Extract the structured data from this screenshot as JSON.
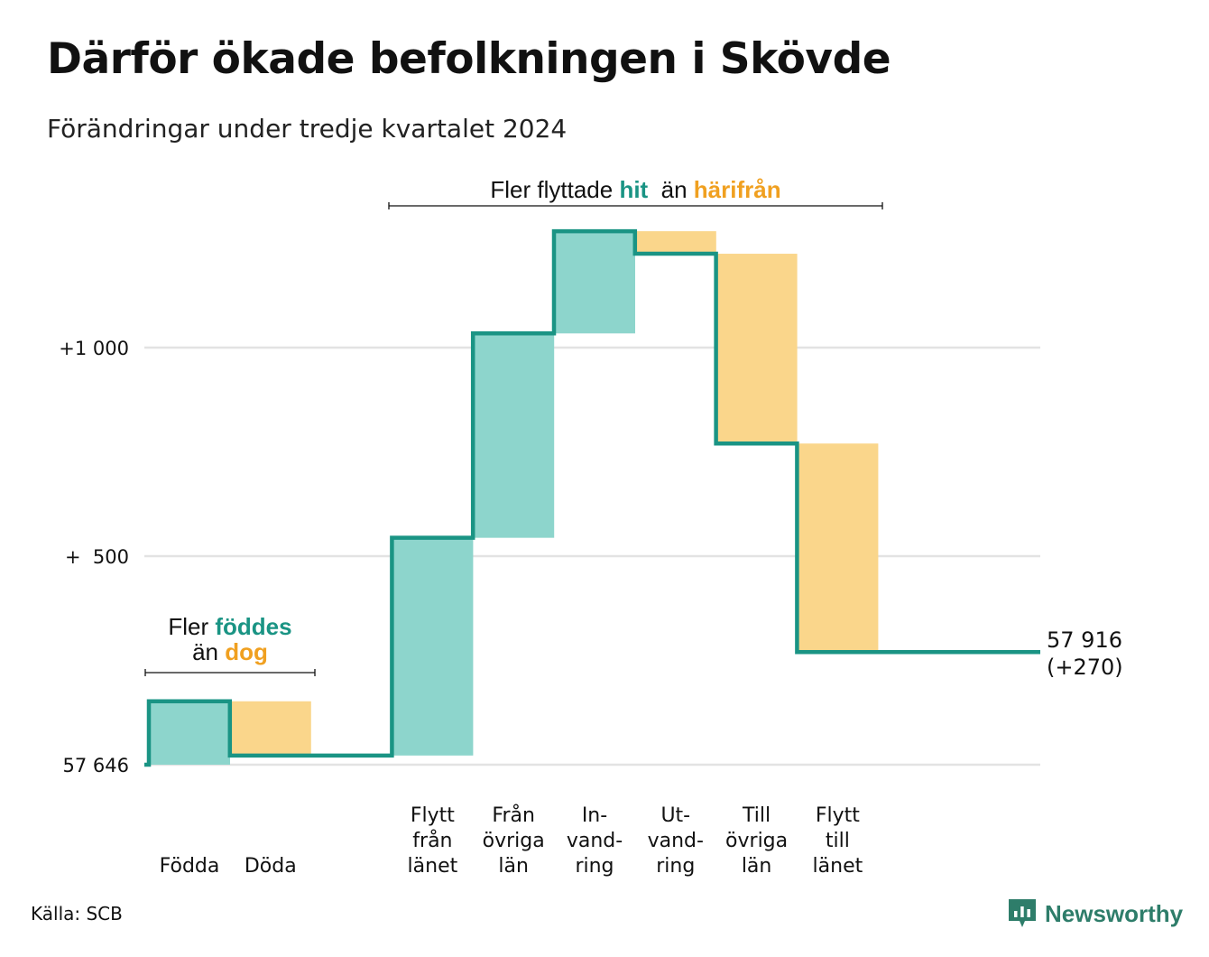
{
  "title": "Därför ökade befolkningen i Skövde",
  "subtitle": "Förändringar under tredje kvartalet 2024",
  "source": "Källa: SCB",
  "brand": {
    "name": "Newsworthy",
    "icon": "newsworthy-logo-icon"
  },
  "colors": {
    "increase": "#8dd5cc",
    "decrease": "#fad68b",
    "line": "#1a9484",
    "hit_text": "#1a9484",
    "away_text": "#f0a020",
    "grid": "#e3e3e3"
  },
  "chart_data": {
    "type": "waterfall",
    "start_value": 57646,
    "end_value": 57916,
    "end_label": [
      "57 916",
      "(+270)"
    ],
    "yticks": [
      {
        "label": "57 646",
        "offset": 0
      },
      {
        "label": "+  500",
        "offset": 500
      },
      {
        "label": "+1 000",
        "offset": 1000
      }
    ],
    "ylim_offset": [
      0,
      1280
    ],
    "steps": [
      {
        "label": [
          "Födda"
        ],
        "change": 152,
        "kind": "increase"
      },
      {
        "label": [
          "Döda"
        ],
        "change": -130,
        "kind": "decrease"
      },
      {
        "label": [],
        "change": 0,
        "kind": "none"
      },
      {
        "label": [
          "Flytt",
          "från",
          "länet"
        ],
        "change": 522,
        "kind": "increase"
      },
      {
        "label": [
          "Från",
          "övriga",
          "län"
        ],
        "change": 490,
        "kind": "increase"
      },
      {
        "label": [
          "In-",
          "vand-",
          "ring"
        ],
        "change": 245,
        "kind": "increase"
      },
      {
        "label": [
          "Ut-",
          "vand-",
          "ring"
        ],
        "change": -54,
        "kind": "decrease"
      },
      {
        "label": [
          "Till",
          "övriga",
          "län"
        ],
        "change": -455,
        "kind": "decrease"
      },
      {
        "label": [
          "Flytt",
          "till",
          "länet"
        ],
        "change": -500,
        "kind": "decrease"
      }
    ],
    "annotations": [
      {
        "id": "birth",
        "lines": [
          [
            {
              "text": "Fler ",
              "role": "plain"
            },
            {
              "text": "föddes",
              "role": "hit"
            }
          ],
          [
            {
              "text": "än ",
              "role": "plain"
            },
            {
              "text": "dog",
              "role": "away"
            }
          ]
        ],
        "span": [
          0,
          1
        ]
      },
      {
        "id": "move",
        "lines": [
          [
            {
              "text": "Fler flyttade ",
              "role": "plain"
            },
            {
              "text": "hit",
              "role": "hit"
            },
            {
              "text": "  än ",
              "role": "plain"
            },
            {
              "text": "härifrån",
              "role": "away"
            }
          ]
        ],
        "span": [
          3,
          8
        ]
      }
    ]
  }
}
